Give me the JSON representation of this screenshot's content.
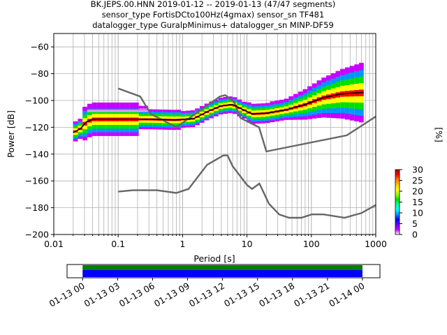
{
  "chart_data": {
    "type": "heatmap",
    "title_lines": [
      "BK.JEPS.00.HNN   2019-01-12 -- 2019-01-13  (47/47 segments)",
      "sensor_type FortisDCto100Hz(4gmax) sensor_sn TF481",
      "datalogger_type GuralpMinimus+ datalogger_sn MINP-DF59"
    ],
    "xlabel": "Period [s]",
    "ylabel": "Power [dB]",
    "xscale": "log",
    "xlim": [
      0.01,
      1000
    ],
    "ylim": [
      -200,
      -50
    ],
    "xticks": [
      {
        "value": 0.01,
        "label": "0.01"
      },
      {
        "value": 0.1,
        "label": "0.1"
      },
      {
        "value": 1,
        "label": "1"
      },
      {
        "value": 10,
        "label": "10"
      },
      {
        "value": 100,
        "label": "100"
      },
      {
        "value": 1000,
        "label": "1000"
      }
    ],
    "yticks": [
      -60,
      -80,
      -100,
      -120,
      -140,
      -160,
      -180,
      -200
    ],
    "grid": true,
    "noise_models": [
      {
        "points": [
          [
            0.1,
            -91
          ],
          [
            0.22,
            -97
          ],
          [
            0.32,
            -110
          ],
          [
            0.8,
            -120
          ],
          [
            3.8,
            -97
          ],
          [
            4.6,
            -96
          ],
          [
            6.3,
            -101
          ],
          [
            7.9,
            -113
          ],
          [
            15.4,
            -120
          ],
          [
            20,
            -138
          ],
          [
            354.8,
            -126
          ],
          [
            1000,
            -112
          ]
        ]
      },
      {
        "points": [
          [
            0.1,
            -168
          ],
          [
            0.17,
            -167
          ],
          [
            0.4,
            -167
          ],
          [
            0.8,
            -169
          ],
          [
            1.24,
            -166
          ],
          [
            2.4,
            -148
          ],
          [
            4.3,
            -141
          ],
          [
            5,
            -141
          ],
          [
            6,
            -149
          ],
          [
            10,
            -163
          ],
          [
            12,
            -166
          ],
          [
            15.6,
            -162
          ],
          [
            21.9,
            -177
          ],
          [
            31.6,
            -185
          ],
          [
            45,
            -187.5
          ],
          [
            70,
            -187.5
          ],
          [
            101,
            -185
          ],
          [
            154,
            -185
          ],
          [
            328,
            -187.5
          ],
          [
            600,
            -184
          ],
          [
            1000,
            -178
          ]
        ]
      }
    ],
    "mode_curve": {
      "points": [
        [
          0.02,
          -124
        ],
        [
          0.026,
          -121
        ],
        [
          0.032,
          -116
        ],
        [
          0.04,
          -114
        ],
        [
          0.1,
          -114
        ],
        [
          0.3,
          -114
        ],
        [
          0.8,
          -114.5
        ],
        [
          1.5,
          -113.5
        ],
        [
          2.5,
          -108
        ],
        [
          4,
          -104
        ],
        [
          6,
          -103
        ],
        [
          8,
          -106
        ],
        [
          12,
          -110
        ],
        [
          20,
          -109.5
        ],
        [
          40,
          -107
        ],
        [
          80,
          -103
        ],
        [
          150,
          -98
        ],
        [
          300,
          -95
        ],
        [
          650,
          -94
        ]
      ]
    },
    "colorbar": {
      "label": "[%]",
      "min": 0,
      "max": 30,
      "ticks": [
        0,
        5,
        10,
        15,
        20,
        25,
        30
      ],
      "colormap": [
        "#ffffff",
        "#c800ff",
        "#6a00ff",
        "#0000ff",
        "#0096ff",
        "#00ffff",
        "#00ff96",
        "#00e000",
        "#96ff00",
        "#ffff00",
        "#ffc800",
        "#ff7800",
        "#ff0000",
        "#a00000"
      ]
    },
    "timeline": {
      "xlim": [
        "2019-01-12 22:40",
        "2019-01-14 01:30"
      ],
      "tick_labels": [
        "01-13 00",
        "01-13 03",
        "01-13 06",
        "01-13 09",
        "01-13 12",
        "01-13 15",
        "01-13 18",
        "01-13 21",
        "01-14 00"
      ],
      "tick_hours": [
        0,
        3,
        6,
        9,
        12,
        15,
        18,
        21,
        24
      ],
      "segments_start_hour": 0,
      "segments_end_hour": 24,
      "colors": {
        "available": "#008000",
        "used": "#0000ff"
      }
    }
  }
}
